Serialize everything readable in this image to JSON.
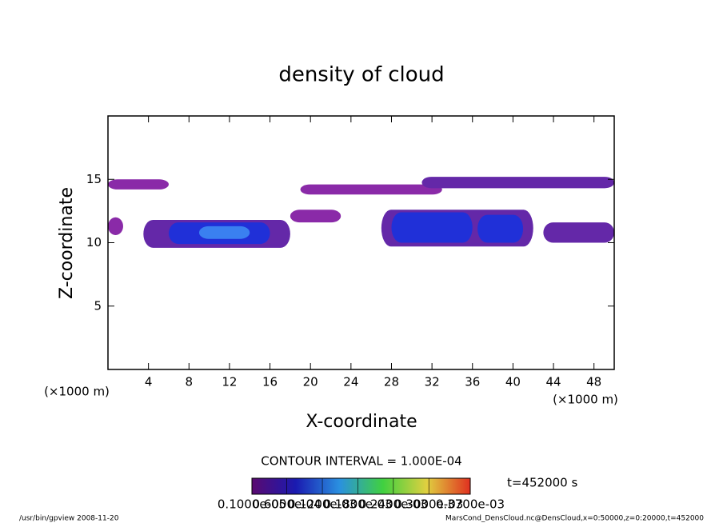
{
  "chart_data": {
    "type": "contour",
    "title": "density of cloud",
    "xlabel": "X-coordinate",
    "ylabel": "Z-coordinate",
    "xunit": "(×1000 m)",
    "yunit": "(×1000 m)",
    "xlim": [
      0,
      50
    ],
    "ylim": [
      0,
      20
    ],
    "xticks": [
      4,
      8,
      12,
      16,
      20,
      24,
      28,
      32,
      36,
      40,
      44,
      48
    ],
    "yticks": [
      5,
      10,
      15
    ],
    "regions": [
      {
        "x": [
          0,
          6
        ],
        "z": [
          14.2,
          15.0
        ],
        "value": 3e-05
      },
      {
        "x": [
          19,
          33
        ],
        "z": [
          13.8,
          14.6
        ],
        "value": 3e-05
      },
      {
        "x": [
          31,
          50
        ],
        "z": [
          14.3,
          15.2
        ],
        "value": 4e-05
      },
      {
        "x": [
          0,
          1.5
        ],
        "z": [
          10.6,
          12.0
        ],
        "value": 3e-05
      },
      {
        "x": [
          3.5,
          18
        ],
        "z": [
          9.6,
          11.8
        ],
        "value": 4e-05
      },
      {
        "x": [
          6,
          16
        ],
        "z": [
          9.9,
          11.6
        ],
        "value": 0.00012
      },
      {
        "x": [
          9,
          14
        ],
        "z": [
          10.3,
          11.3
        ],
        "value": 0.0002
      },
      {
        "x": [
          18,
          23
        ],
        "z": [
          11.6,
          12.6
        ],
        "value": 3e-05
      },
      {
        "x": [
          27,
          42
        ],
        "z": [
          9.7,
          12.6
        ],
        "value": 4e-05
      },
      {
        "x": [
          28,
          36
        ],
        "z": [
          10.0,
          12.4
        ],
        "value": 0.00012
      },
      {
        "x": [
          36.5,
          41
        ],
        "z": [
          10.0,
          12.2
        ],
        "value": 0.00012
      },
      {
        "x": [
          43,
          50
        ],
        "z": [
          10.0,
          11.6
        ],
        "value": 4e-05
      }
    ],
    "contour_interval": "CONTOUR INTERVAL = 1.000E-04",
    "time_label": "t=452000 s",
    "colorbar_ticks": [
      {
        "value": 1e-06,
        "label": "0.1000e-05"
      },
      {
        "value": 6e-05,
        "label": "0.6000e-04"
      },
      {
        "value": 0.00012,
        "label": "0.1200e-03"
      },
      {
        "value": 0.00018,
        "label": "0.1800e-03"
      },
      {
        "value": 0.00024,
        "label": "0.2400e-03"
      },
      {
        "value": 0.0003,
        "label": "0.3000e-03"
      },
      {
        "value": 0.00037,
        "label": "0.3700e-03"
      }
    ],
    "footer_left": "/usr/bin/gpview  2008-11-20",
    "footer_right": "MarsCond_DensCloud.nc@DensCloud,x=0:50000,z=0:20000,t=452000"
  }
}
